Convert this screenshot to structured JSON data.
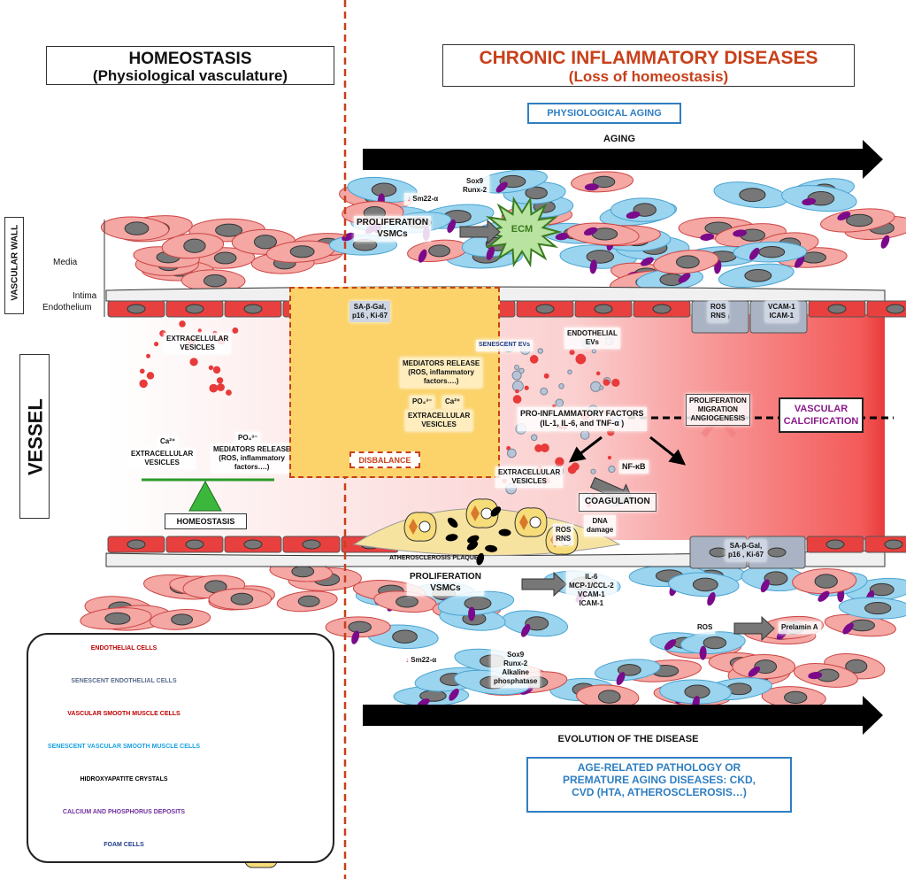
{
  "titles": {
    "left_main": "HOMEOSTASIS",
    "left_sub": "(Physiological vasculature)",
    "right_main": "CHRONIC INFLAMMATORY DISEASES",
    "right_sub": "(Loss of homeostasis)"
  },
  "physiological_aging": "PHYSIOLOGICAL AGING",
  "aging_arrow": "AGING",
  "evolution_arrow": "EVOLUTION OF THE DISEASE",
  "pathology_box": [
    "AGE-RELATED PATHOLOGY OR",
    "PREMATURE AGING DISEASES: CKD,",
    "CVD (HTA, ATHEROSCLEROSIS…)"
  ],
  "side_labels": {
    "vascular_wall": "VASCULAR WALL",
    "vessel": "VESSEL",
    "media": "Media",
    "intima": "Intima",
    "endothelium": "Endothelium"
  },
  "homeostasis_side": {
    "ev": [
      "EXTRACELLULAR",
      "VESICLES"
    ],
    "ca": "Ca²⁺",
    "ev2": [
      "EXTRACELLULAR",
      "VESICLES"
    ],
    "po4": "PO₄³⁻",
    "mediators": [
      "MEDIATORS RELEASE",
      "(ROS, inflammatory",
      "factors….)"
    ],
    "balance": "HOMEOSTASIS"
  },
  "disbalance_box": {
    "mediators": [
      "MEDIATORS RELEASE",
      "(ROS, inflammatory",
      "factors….)"
    ],
    "po4": "PO₄³⁻",
    "ca": "Ca²⁺",
    "ev": [
      "EXTRACELLULAR",
      "VESICLES"
    ],
    "label": "DISBALANCE"
  },
  "top_labels": {
    "sm22": "Sm22-α",
    "sox9": [
      "Sox9",
      "Runx-2"
    ],
    "prolif": [
      "PROLIFERATION",
      "VSMCs"
    ],
    "ecm": "ECM",
    "sa_gal": [
      "SA-β-Gal,",
      "p16 , Ki-67"
    ],
    "ros_rns": [
      "ROS",
      "RNS"
    ],
    "vcam": [
      "VCAM-1",
      "ICAM-1"
    ],
    "endo_evs": [
      "ENDOTHELIAL",
      "EVs"
    ],
    "senescent_evs": "SENESCENT EVs"
  },
  "lumen_labels": {
    "pro_inflam": [
      "PRO-INFLAMMATORY FACTORS",
      "(IL-1, IL-6, and TNF-α )"
    ],
    "prolif_mig": [
      "PROLIFERATION",
      "MIGRATION",
      "ANGIOGENESIS"
    ],
    "vasc_calc": [
      "VASCULAR",
      "CALCIFICATION"
    ],
    "nfkb": "NF-κB",
    "ev": [
      "EXTRACELLULAR",
      "VESICLES"
    ],
    "coag": "COAGULATION",
    "ros_rns": [
      "ROS",
      "RNS"
    ],
    "dna": [
      "DNA",
      "damage"
    ],
    "plaque": "ATHEROSCLEROSIS PLAQUE",
    "sa_gal": [
      "SA-β-Gal,",
      "p16 , Ki-67"
    ]
  },
  "bottom_labels": {
    "prolif": [
      "PROLIFERATION",
      "VSMCs"
    ],
    "il6": [
      "IL-6",
      "MCP-1/CCL-2",
      "VCAM-1",
      "ICAM-1"
    ],
    "ros": "ROS",
    "prelamin": "Prelamin A",
    "sm22": "Sm22-α",
    "sox9": [
      "Sox9",
      "Runx-2",
      "Alkaline",
      "phosphatase"
    ]
  },
  "legend": [
    {
      "label": "ENDOTHELIAL CELLS",
      "color": "#c00000"
    },
    {
      "label": "SENESCENT ENDOTHELIAL CELLS",
      "color": "#5a6b8c"
    },
    {
      "label": "VASCULAR SMOOTH MUSCLE CELLS",
      "color": "#c00000"
    },
    {
      "label": "SENESCENT VASCULAR SMOOTH MUSCLE CELLS",
      "color": "#1ba1e2"
    },
    {
      "label": "HIDROXYAPATITE CRYSTALS",
      "color": "#000000"
    },
    {
      "label": "CALCIUM AND PHOSPHORUS DEPOSITS",
      "color": "#7030a0"
    },
    {
      "label": "FOAM CELLS",
      "color": "#1f3c88"
    }
  ],
  "colors": {
    "endothelial": "#e8403e",
    "senescent_endo": "#a9b3c4",
    "vsmc": "#f4a7a3",
    "senescent_vsmc": "#9ad4ef",
    "deposit": "#7a0a8a",
    "accent_red": "#c8401a",
    "blue_box": "#2f7fc1",
    "yellow_box": "#fbd36a"
  }
}
